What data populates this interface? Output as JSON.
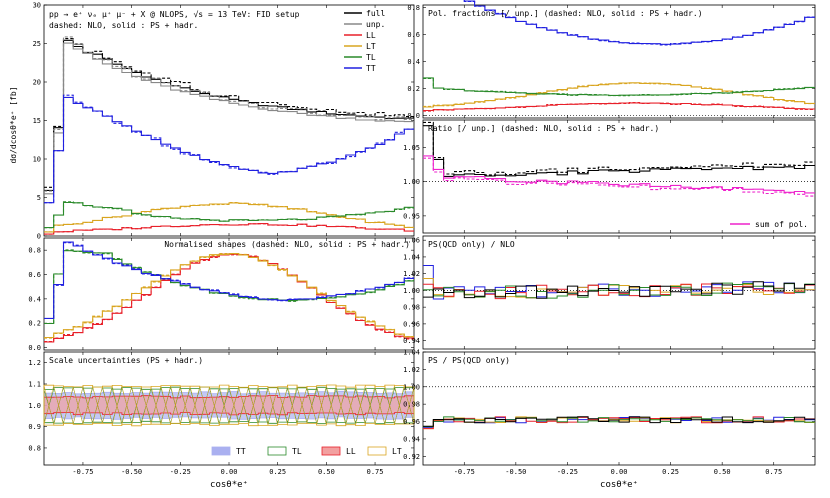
{
  "colors": {
    "full": "#000000",
    "unp": "#888888",
    "LL": "#e8202a",
    "LT": "#d9a520",
    "TL": "#2a8a2a",
    "TT": "#2020e0",
    "sum": "#ee22cc",
    "tt_fill": "#aab0f0",
    "ll_fill": "#f2a0a0"
  },
  "chart_data": [
    {
      "type": "line",
      "panel": "left-1",
      "name": "differential",
      "title": "pp → e⁺ νₑ μ⁺ μ⁻ + X @ NLOPS, √s = 13 TeV: FID setup",
      "subtitle": "dashed: NLO, solid : PS + hadr.",
      "ylabel": "dσ/dcosθ*e⁺ [fb]",
      "xlim": [
        -0.95,
        0.95
      ],
      "ylim": [
        0,
        30
      ],
      "yticks": [
        0,
        5,
        10,
        15,
        20,
        25,
        30
      ],
      "legend": [
        "full",
        "unp.",
        "LL",
        "LT",
        "TL",
        "TT"
      ],
      "legend_placement": "top-right",
      "series": [
        {
          "name": "full",
          "shape": "full",
          "yscale": 1.0
        },
        {
          "name": "unp.",
          "shape": "unp",
          "yscale": 1.0
        },
        {
          "name": "LL",
          "shape": "LL",
          "yscale": 1.0
        },
        {
          "name": "LT",
          "shape": "LT",
          "yscale": 1.0
        },
        {
          "name": "TL",
          "shape": "TL",
          "yscale": 1.0
        },
        {
          "name": "TT",
          "shape": "TT",
          "yscale": 1.0
        }
      ]
    },
    {
      "type": "line",
      "panel": "left-2",
      "name": "shapes",
      "title": "Normalised shapes (dashed: NLO, solid : PS + hadr.)",
      "xlim": [
        -0.95,
        0.95
      ],
      "ylim": [
        -0.02,
        0.9
      ],
      "yticks": [
        0.0,
        0.2,
        0.4,
        0.6,
        0.8
      ],
      "series": [
        {
          "name": "LL",
          "shape": "nLL"
        },
        {
          "name": "LT",
          "shape": "nLT"
        },
        {
          "name": "TL",
          "shape": "nTL"
        },
        {
          "name": "TT",
          "shape": "nTT"
        }
      ]
    },
    {
      "type": "area",
      "panel": "left-3",
      "name": "scale",
      "title": "Scale uncertainties (PS + hadr.)",
      "xlim": [
        -0.95,
        0.95
      ],
      "ylim": [
        0.72,
        1.25
      ],
      "yticks": [
        0.8,
        0.9,
        1.0,
        1.1,
        1.2
      ],
      "xticks": [
        -0.75,
        -0.5,
        -0.25,
        0.0,
        0.25,
        0.5,
        0.75
      ],
      "xlabel": "cosθ*e⁺",
      "legend": [
        "TT",
        "TL",
        "LL",
        "LT"
      ],
      "bands": {
        "TT": 0.06,
        "TL": 0.08,
        "LL": 0.04,
        "LT": 0.09
      }
    },
    {
      "type": "line",
      "panel": "right-1",
      "name": "fractions",
      "title": "Pol. fractions [/ unp.]  (dashed: NLO, solid : PS + hadr.)",
      "xlim": [
        -0.95,
        0.95
      ],
      "ylim": [
        -0.02,
        0.82
      ],
      "yticks": [
        0.0,
        0.2,
        0.4,
        0.6,
        0.8
      ],
      "series": [
        {
          "name": "TT",
          "shape": "fTT"
        },
        {
          "name": "LT",
          "shape": "fLT"
        },
        {
          "name": "TL",
          "shape": "fTL"
        },
        {
          "name": "LL",
          "shape": "fLL"
        }
      ]
    },
    {
      "type": "line",
      "panel": "right-2",
      "name": "ratio",
      "title": "Ratio [/ unp.] (dashed: NLO, solid : PS + hadr.)",
      "xlim": [
        -0.95,
        0.95
      ],
      "ylim": [
        0.925,
        1.09
      ],
      "yticks": [
        0.95,
        1.0,
        1.05
      ],
      "legend": [
        "sum of pol."
      ]
    },
    {
      "type": "line",
      "panel": "right-3",
      "name": "psqcd",
      "title": "PS(QCD only) / NLO",
      "xlim": [
        -0.95,
        0.95
      ],
      "ylim": [
        0.93,
        1.065
      ],
      "yticks": [
        0.94,
        0.96,
        0.98,
        1.0,
        1.02,
        1.04,
        1.06
      ]
    },
    {
      "type": "line",
      "panel": "right-4",
      "name": "pshadr",
      "title": "PS / PS(QCD only)",
      "xlim": [
        -0.95,
        0.95
      ],
      "ylim": [
        0.91,
        1.04
      ],
      "yticks": [
        0.92,
        0.94,
        0.96,
        0.98,
        1.0,
        1.02,
        1.04
      ],
      "xticks": [
        -0.75,
        -0.5,
        -0.25,
        0.0,
        0.25,
        0.5,
        0.75
      ],
      "xlabel": "cosθ*e⁺"
    }
  ]
}
